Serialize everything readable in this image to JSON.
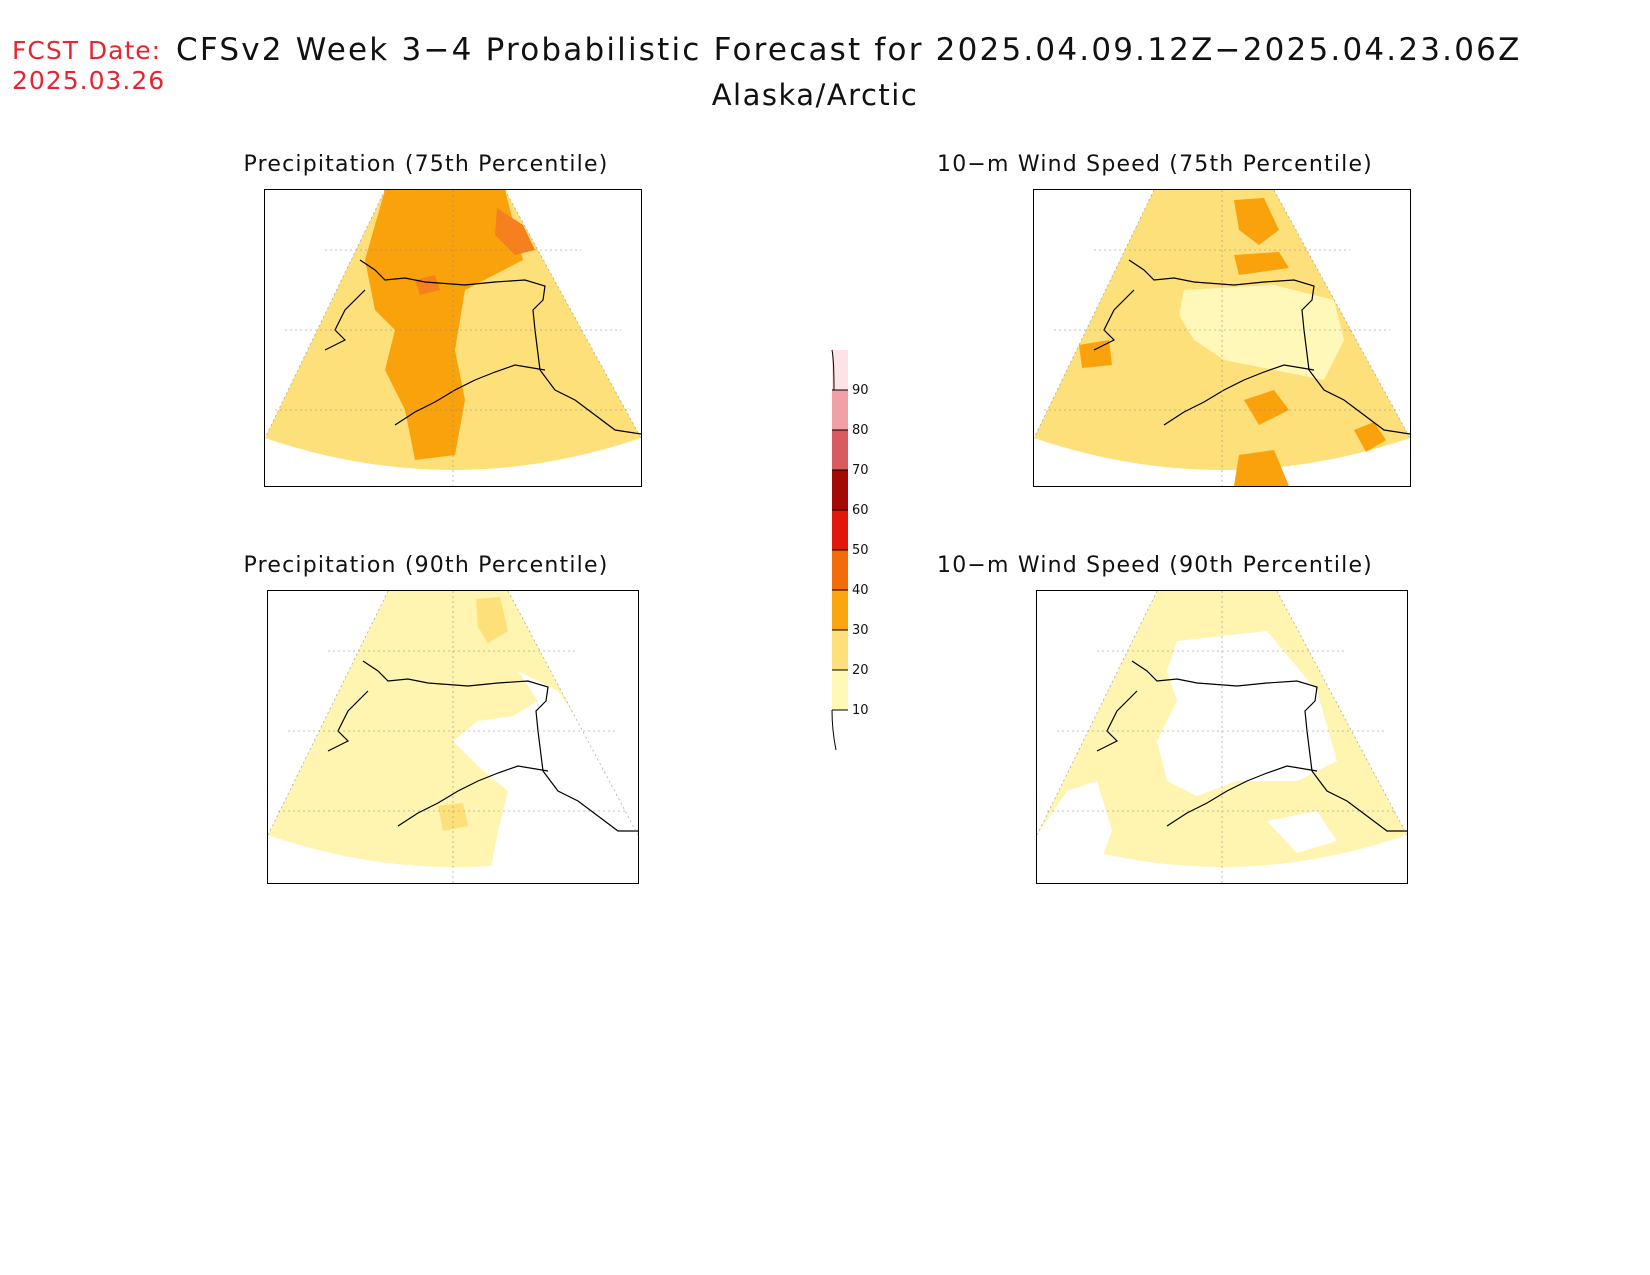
{
  "header": {
    "fcst_label": "FCST Date:",
    "fcst_date": "2025.03.26",
    "title": "CFSv2 Week 3−4 Probabilistic Forecast for 2025.04.09.12Z−2025.04.23.06Z",
    "region": "Alaska/Arctic"
  },
  "panels": [
    {
      "id": "precip-75",
      "title": "Precipitation (75th Percentile)",
      "fill": "#fde07a",
      "patch": "#f9a20c",
      "patch2": "#f6801e"
    },
    {
      "id": "wind-75",
      "title": "10−m Wind Speed (75th Percentile)",
      "fill": "#fde07a",
      "patch": "#f9a20c",
      "patch2": "#fff8b8"
    },
    {
      "id": "precip-90",
      "title": "Precipitation (90th Percentile)",
      "fill": "#fff4b0",
      "patch": "#fde07a",
      "patch2": "#ffffff"
    },
    {
      "id": "wind-90",
      "title": "10−m Wind Speed (90th Percentile)",
      "fill": "#fff4b0",
      "patch": "#ffffff",
      "patch2": "#fde07a"
    }
  ],
  "colorbar": {
    "ticks": [
      "10",
      "20",
      "30",
      "40",
      "50",
      "60",
      "70",
      "80",
      "90"
    ],
    "colors": [
      "#fff9b8",
      "#fde07a",
      "#fba60f",
      "#f46b0c",
      "#e0170a",
      "#a30a06",
      "#d75b5f",
      "#f0a1a6",
      "#fde3e6"
    ]
  }
}
